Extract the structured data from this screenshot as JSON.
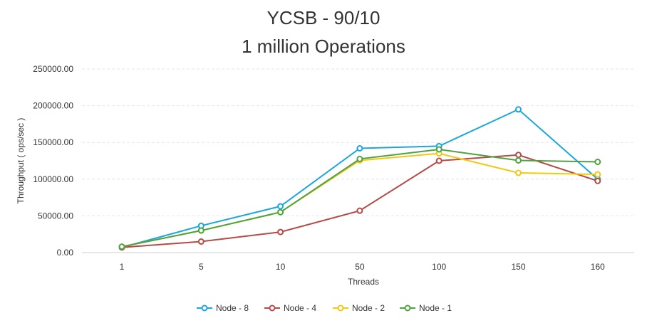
{
  "chart_data": {
    "type": "line",
    "title": [
      "YCSB - 90/10",
      "1 million Operations"
    ],
    "xlabel": "Threads",
    "ylabel": "Throughput ( ops/sec )",
    "categories": [
      "1",
      "5",
      "10",
      "50",
      "100",
      "150",
      "160"
    ],
    "ylim": [
      0,
      250000
    ],
    "yticks": [
      "0.00",
      "50000.00",
      "100000.00",
      "150000.00",
      "200000.00",
      "250000.00"
    ],
    "grid": true,
    "legend_position": "bottom",
    "series": [
      {
        "name": "Node - 8",
        "color": "#1aa7dd",
        "values": [
          7000,
          36500,
          63000,
          142000,
          145000,
          195000,
          100000
        ]
      },
      {
        "name": "Node - 4",
        "color": "#b44b47",
        "values": [
          7000,
          15000,
          28000,
          57000,
          125000,
          133000,
          97500
        ]
      },
      {
        "name": "Node - 2",
        "color": "#f2c816",
        "values": [
          8000,
          30000,
          55000,
          125500,
          135000,
          108500,
          106500
        ]
      },
      {
        "name": "Node - 1",
        "color": "#4ea33e",
        "values": [
          8000,
          30000,
          55000,
          127500,
          140500,
          125500,
          123500
        ]
      }
    ]
  }
}
